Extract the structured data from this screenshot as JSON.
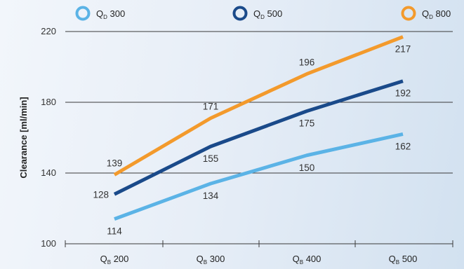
{
  "chart_data": {
    "type": "line",
    "ylabel": "Clearance [ml/min]",
    "ylim": [
      100,
      220
    ],
    "yticks": [
      100,
      140,
      180,
      220
    ],
    "grid": "horizontal",
    "legend_position": "top",
    "categories": [
      {
        "main": "Q",
        "sub": "B",
        "num": "200"
      },
      {
        "main": "Q",
        "sub": "B",
        "num": "300"
      },
      {
        "main": "Q",
        "sub": "B",
        "num": "400"
      },
      {
        "main": "Q",
        "sub": "B",
        "num": "500"
      }
    ],
    "series": [
      {
        "main": "Q",
        "sub": "D",
        "num": "300",
        "color": "#5bb3e6",
        "values": [
          114,
          134,
          150,
          162
        ],
        "label_side": [
          "below",
          "below",
          "below",
          "below"
        ]
      },
      {
        "main": "Q",
        "sub": "D",
        "num": "500",
        "color": "#1a4a8a",
        "values": [
          128,
          155,
          175,
          192
        ],
        "label_side": [
          "left",
          "below",
          "below",
          "below"
        ]
      },
      {
        "main": "Q",
        "sub": "D",
        "num": "800",
        "color": "#f39a2c",
        "values": [
          139,
          171,
          196,
          217
        ],
        "label_side": [
          "above",
          "above",
          "above",
          "below"
        ]
      }
    ]
  }
}
